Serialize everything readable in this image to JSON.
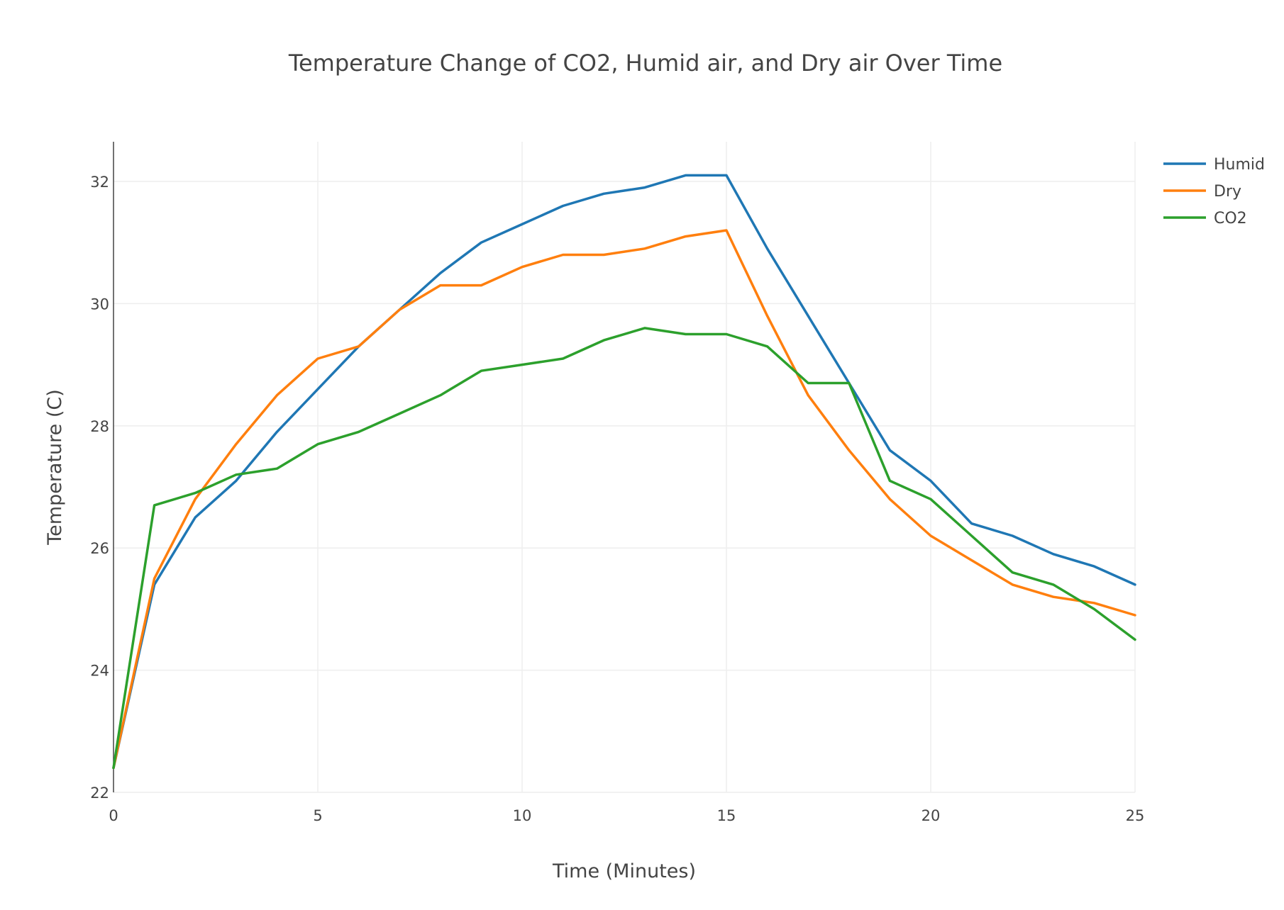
{
  "chart_data": {
    "type": "line",
    "title": "Temperature Change of CO2, Humid air, and Dry air Over Time",
    "xlabel": "Time (Minutes)",
    "ylabel": "Temperature (C)",
    "xlim": [
      0,
      25
    ],
    "ylim": [
      22,
      32.65
    ],
    "x_ticks": [
      0,
      5,
      10,
      15,
      20,
      25
    ],
    "y_ticks": [
      22,
      24,
      26,
      28,
      30,
      32
    ],
    "grid": true,
    "legend_position": "top-right",
    "x": [
      0,
      1,
      2,
      3,
      4,
      5,
      6,
      7,
      8,
      9,
      10,
      11,
      12,
      13,
      14,
      15,
      16,
      17,
      18,
      19,
      20,
      21,
      22,
      23,
      24,
      25
    ],
    "series": [
      {
        "name": "Humid",
        "color": "#1f77b4",
        "values": [
          22.4,
          25.4,
          26.5,
          27.1,
          27.9,
          28.6,
          29.3,
          29.9,
          30.5,
          31.0,
          31.3,
          31.6,
          31.8,
          31.9,
          32.1,
          32.1,
          30.9,
          29.8,
          28.7,
          27.6,
          27.1,
          26.4,
          26.2,
          25.9,
          25.7,
          25.4
        ]
      },
      {
        "name": "Dry",
        "color": "#ff7f0e",
        "values": [
          22.4,
          25.5,
          26.8,
          27.7,
          28.5,
          29.1,
          29.3,
          29.9,
          30.3,
          30.3,
          30.6,
          30.8,
          30.8,
          30.9,
          31.1,
          31.2,
          29.8,
          28.5,
          27.6,
          26.8,
          26.2,
          25.8,
          25.4,
          25.2,
          25.1,
          24.9
        ]
      },
      {
        "name": "CO2",
        "color": "#2ca02c",
        "values": [
          22.4,
          26.7,
          26.9,
          27.2,
          27.3,
          27.7,
          27.9,
          28.2,
          28.5,
          28.9,
          29.0,
          29.1,
          29.4,
          29.6,
          29.5,
          29.5,
          29.3,
          28.7,
          28.7,
          27.1,
          26.8,
          26.2,
          25.6,
          25.4,
          25.0,
          24.5
        ]
      }
    ]
  }
}
